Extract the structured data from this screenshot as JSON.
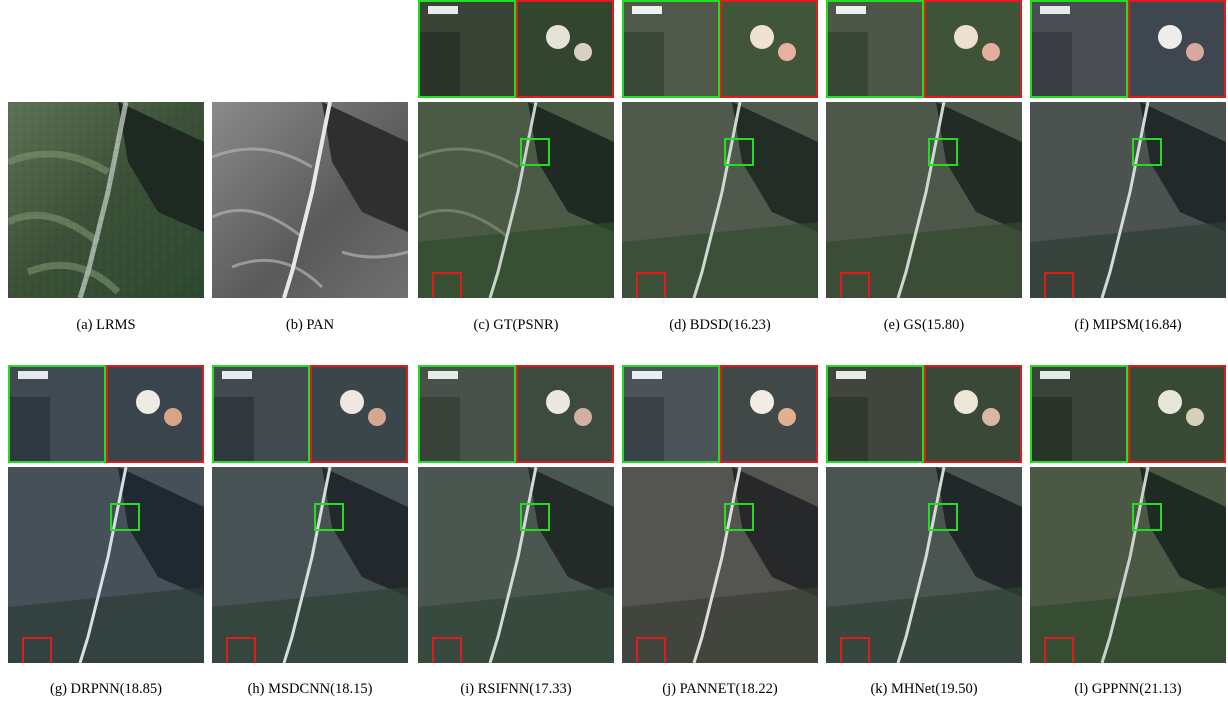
{
  "figure": {
    "rows": [
      [
        {
          "id": "a",
          "caption": "(a)  LRMS",
          "kind": "lrms"
        },
        {
          "id": "b",
          "caption": "(b)  PAN",
          "kind": "pan"
        },
        {
          "id": "c",
          "caption": "(c)  GT(PSNR)",
          "kind": "gt"
        },
        {
          "id": "d",
          "caption": "(d)  BDSD(16.23)",
          "kind": "method"
        },
        {
          "id": "e",
          "caption": "(e)  GS(15.80)",
          "kind": "method"
        },
        {
          "id": "f",
          "caption": "(f)  MIPSM(16.84)",
          "kind": "method"
        }
      ],
      [
        {
          "id": "g",
          "caption": "(g)  DRPNN(18.85)",
          "kind": "method"
        },
        {
          "id": "h",
          "caption": "(h)  MSDCNN(18.15)",
          "kind": "method"
        },
        {
          "id": "i",
          "caption": "(i)  RSIFNN(17.33)",
          "kind": "method"
        },
        {
          "id": "j",
          "caption": "(j)  PANNET(18.22)",
          "kind": "method"
        },
        {
          "id": "k",
          "caption": "(k)  MHNet(19.50)",
          "kind": "method"
        },
        {
          "id": "l",
          "caption": "(l)  GPPNN(21.13)",
          "kind": "method"
        }
      ]
    ],
    "colors": {
      "green_box": "#22dd22",
      "red_box": "#e01b1b"
    }
  }
}
